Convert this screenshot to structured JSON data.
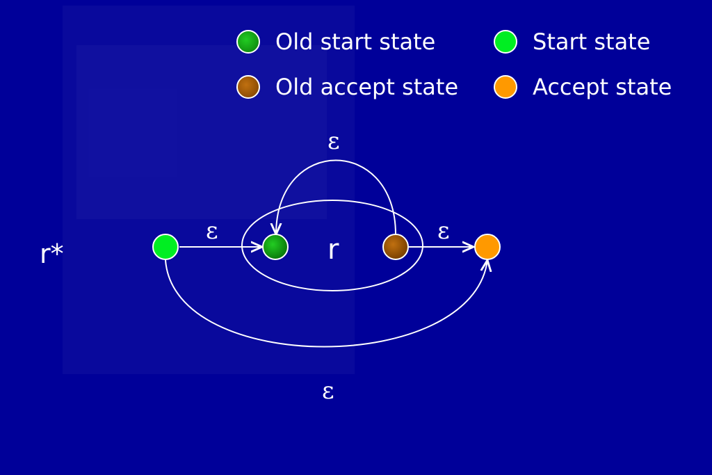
{
  "legend": {
    "old_start": "Old start state",
    "start": "Start state",
    "old_accept": "Old accept state",
    "accept": "Accept state"
  },
  "diagram": {
    "expression": "r*",
    "inner_label": "r",
    "epsilon": "ε"
  },
  "colors": {
    "background": "#000099",
    "start": "#00ee22",
    "old_start": "#119911",
    "accept": "#ff9900",
    "old_accept": "#a45a00",
    "stroke": "#ffffff"
  }
}
